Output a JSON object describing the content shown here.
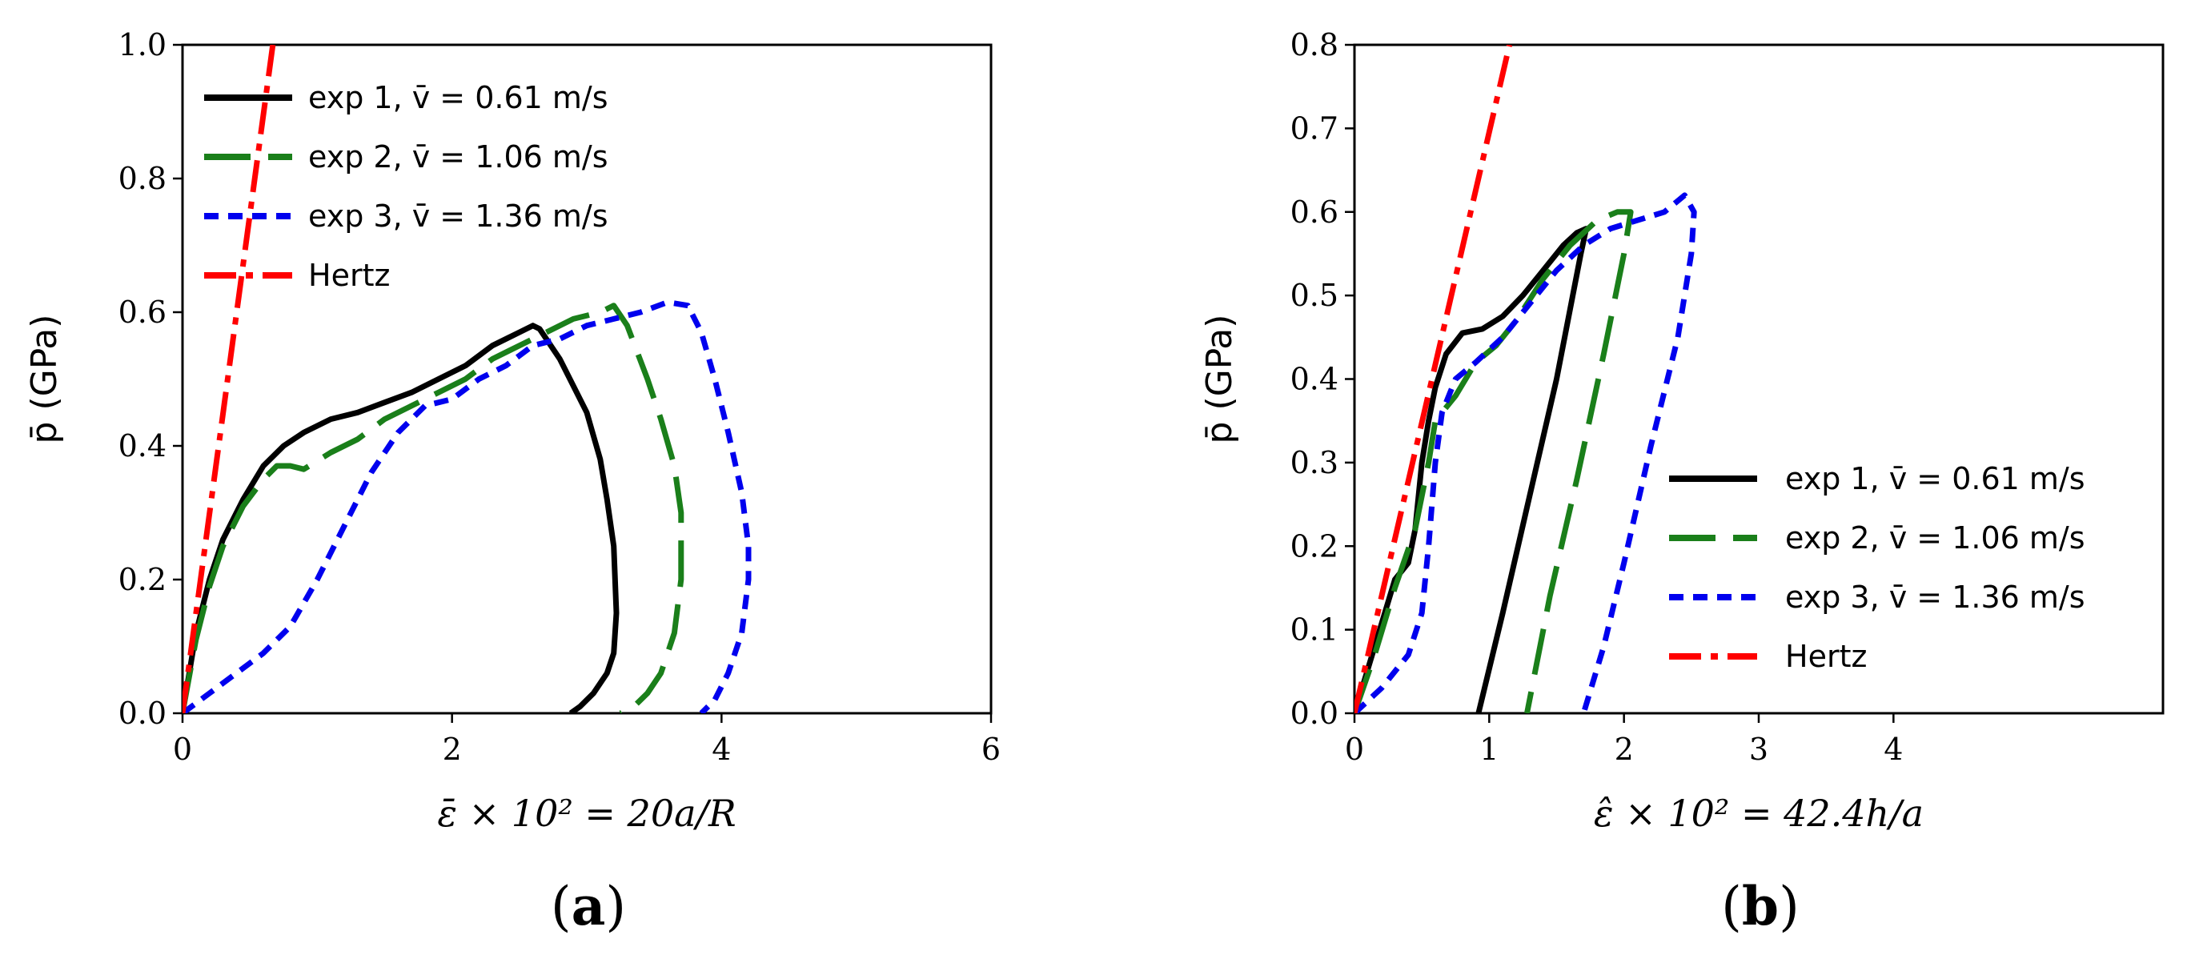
{
  "chart_data": [
    {
      "type": "line",
      "panel_label": "(a)",
      "panel_letter": "a",
      "title": "",
      "xlabel": "ε̄ × 10² = 20a/R",
      "ylabel": "p̄ (GPa)",
      "xlim": [
        0,
        6
      ],
      "ylim": [
        0,
        1.0
      ],
      "xticks": [
        0,
        2,
        4,
        6
      ],
      "xtick_labels": [
        "0",
        "2",
        "4",
        "6"
      ],
      "yticks": [
        0,
        0.2,
        0.4,
        0.6,
        0.8,
        1.0
      ],
      "ytick_labels": [
        "0.0",
        "0.2",
        "0.4",
        "0.6",
        "0.8",
        "1.0"
      ],
      "legend_position": "top-left",
      "series": [
        {
          "name": "exp 1, v̄ = 0.61 m/s",
          "color": "#000000",
          "style": "solid",
          "x": [
            0.0,
            0.1,
            0.2,
            0.3,
            0.45,
            0.6,
            0.75,
            0.9,
            1.1,
            1.3,
            1.5,
            1.7,
            1.9,
            2.1,
            2.3,
            2.5,
            2.6,
            2.65,
            2.8,
            3.0,
            3.1,
            3.15,
            3.2,
            3.22,
            3.2,
            3.15,
            3.05,
            2.95,
            2.88
          ],
          "y": [
            0.0,
            0.12,
            0.2,
            0.26,
            0.32,
            0.37,
            0.4,
            0.42,
            0.44,
            0.45,
            0.465,
            0.48,
            0.5,
            0.52,
            0.55,
            0.57,
            0.58,
            0.575,
            0.53,
            0.45,
            0.38,
            0.32,
            0.25,
            0.15,
            0.09,
            0.06,
            0.03,
            0.01,
            0.0
          ]
        },
        {
          "name": "exp 2, v̄ = 1.06 m/s",
          "color": "#1a7f1a",
          "style": "dashed",
          "x": [
            0.0,
            0.1,
            0.2,
            0.3,
            0.45,
            0.6,
            0.7,
            0.8,
            0.9,
            1.1,
            1.3,
            1.5,
            1.7,
            1.9,
            2.1,
            2.3,
            2.5,
            2.7,
            2.9,
            3.1,
            3.2,
            3.3,
            3.45,
            3.55,
            3.65,
            3.7,
            3.7,
            3.65,
            3.55,
            3.45,
            3.35,
            3.25
          ],
          "y": [
            0.0,
            0.11,
            0.19,
            0.25,
            0.31,
            0.35,
            0.37,
            0.37,
            0.365,
            0.39,
            0.41,
            0.44,
            0.46,
            0.48,
            0.5,
            0.53,
            0.55,
            0.57,
            0.59,
            0.6,
            0.61,
            0.58,
            0.5,
            0.44,
            0.37,
            0.3,
            0.2,
            0.12,
            0.06,
            0.03,
            0.01,
            0.0
          ]
        },
        {
          "name": "exp 3, v̄ = 1.36 m/s",
          "color": "#0000ee",
          "style": "dotted",
          "x": [
            0.0,
            0.2,
            0.4,
            0.6,
            0.8,
            1.0,
            1.2,
            1.4,
            1.6,
            1.8,
            2.0,
            2.2,
            2.4,
            2.6,
            2.8,
            3.0,
            3.2,
            3.4,
            3.6,
            3.75,
            3.85,
            3.95,
            4.05,
            4.15,
            4.2,
            4.2,
            4.15,
            4.05,
            3.95,
            3.85
          ],
          "y": [
            0.0,
            0.03,
            0.06,
            0.09,
            0.13,
            0.2,
            0.28,
            0.36,
            0.42,
            0.46,
            0.47,
            0.5,
            0.52,
            0.55,
            0.56,
            0.58,
            0.59,
            0.6,
            0.615,
            0.61,
            0.57,
            0.5,
            0.42,
            0.33,
            0.25,
            0.2,
            0.12,
            0.06,
            0.02,
            0.0
          ]
        },
        {
          "name": "Hertz",
          "color": "#ff0000",
          "style": "dashdot",
          "x": [
            0.0,
            0.67
          ],
          "y": [
            0.0,
            1.0
          ]
        }
      ]
    },
    {
      "type": "line",
      "panel_label": "(b)",
      "panel_letter": "b",
      "title": "",
      "xlabel": "ε̂ × 10² = 42.4h/a",
      "ylabel": "p̄ (GPa)",
      "xlim": [
        0,
        6
      ],
      "ylim": [
        0,
        0.8
      ],
      "xticks": [
        0,
        1,
        2,
        3,
        4
      ],
      "xtick_labels": [
        "0",
        "1",
        "2",
        "3",
        "4"
      ],
      "yticks": [
        0,
        0.1,
        0.2,
        0.3,
        0.4,
        0.5,
        0.6,
        0.7,
        0.8
      ],
      "ytick_labels": [
        "0.0",
        "0.1",
        "0.2",
        "0.3",
        "0.4",
        "0.5",
        "0.6",
        "0.7",
        "0.8"
      ],
      "legend_position": "center-right",
      "series": [
        {
          "name": "exp 1, v̄ = 0.61 m/s",
          "color": "#000000",
          "style": "solid",
          "x": [
            0.0,
            0.15,
            0.3,
            0.4,
            0.45,
            0.5,
            0.55,
            0.6,
            0.68,
            0.8,
            0.95,
            1.1,
            1.25,
            1.4,
            1.55,
            1.65,
            1.72,
            1.68,
            1.5,
            1.3,
            1.1,
            0.92
          ],
          "y": [
            0.0,
            0.08,
            0.16,
            0.18,
            0.22,
            0.3,
            0.35,
            0.39,
            0.43,
            0.455,
            0.46,
            0.475,
            0.5,
            0.53,
            0.56,
            0.575,
            0.58,
            0.55,
            0.4,
            0.26,
            0.12,
            0.0
          ]
        },
        {
          "name": "exp 2, v̄ = 1.06 m/s",
          "color": "#1a7f1a",
          "style": "dashed",
          "x": [
            0.0,
            0.15,
            0.3,
            0.45,
            0.55,
            0.6,
            0.65,
            0.75,
            0.9,
            1.05,
            1.2,
            1.4,
            1.6,
            1.8,
            1.95,
            2.05,
            2.0,
            1.85,
            1.65,
            1.45,
            1.28
          ],
          "y": [
            0.0,
            0.07,
            0.15,
            0.22,
            0.3,
            0.35,
            0.36,
            0.38,
            0.42,
            0.44,
            0.47,
            0.52,
            0.56,
            0.59,
            0.6,
            0.6,
            0.55,
            0.43,
            0.28,
            0.14,
            0.0
          ]
        },
        {
          "name": "exp 3, v̄ = 1.36 m/s",
          "color": "#0000ee",
          "style": "dotted",
          "x": [
            0.0,
            0.2,
            0.4,
            0.5,
            0.55,
            0.6,
            0.65,
            0.75,
            0.9,
            1.1,
            1.3,
            1.5,
            1.7,
            1.9,
            2.1,
            2.3,
            2.45,
            2.52,
            2.5,
            2.4,
            2.2,
            2.0,
            1.85,
            1.7
          ],
          "y": [
            0.0,
            0.03,
            0.07,
            0.12,
            0.2,
            0.3,
            0.36,
            0.4,
            0.42,
            0.45,
            0.49,
            0.53,
            0.56,
            0.58,
            0.59,
            0.6,
            0.62,
            0.6,
            0.55,
            0.45,
            0.32,
            0.18,
            0.08,
            0.0
          ]
        },
        {
          "name": "Hertz",
          "color": "#ff0000",
          "style": "dashdot",
          "x": [
            0.0,
            1.15
          ],
          "y": [
            0.0,
            0.8
          ]
        }
      ]
    }
  ]
}
